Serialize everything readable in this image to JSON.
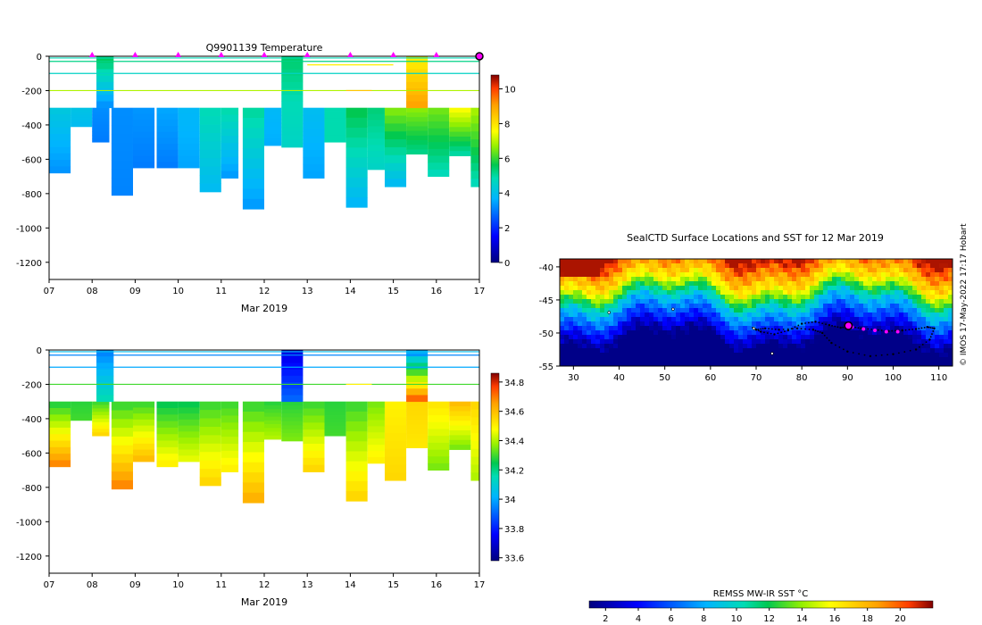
{
  "chart_data": [
    {
      "id": "temp",
      "type": "heatmap",
      "title": "Q9901139  Temperature",
      "xlabel": "Mar 2019",
      "x_ticks": [
        "07",
        "08",
        "09",
        "10",
        "11",
        "12",
        "13",
        "14",
        "15",
        "16",
        "17"
      ],
      "xlim": [
        7,
        17
      ],
      "ylim": [
        -1300,
        0
      ],
      "y_ticks": [
        0,
        -200,
        -400,
        -600,
        -800,
        -1000,
        -1200
      ],
      "colorbar": {
        "min": 0,
        "max": 10.8,
        "ticks": [
          0,
          2,
          4,
          6,
          8,
          10
        ]
      },
      "surface_markers_day": [
        8,
        9,
        10,
        11,
        12,
        13,
        14,
        15,
        16
      ],
      "current_marker_day": 17,
      "profiles": [
        {
          "day": 7.0,
          "width": 0.5,
          "depth": 680,
          "surface": 4.6,
          "top": 4.2,
          "bottom": 3.3
        },
        {
          "day": 7.5,
          "width": 0.5,
          "depth": 410,
          "surface": 4.8,
          "top": 4.1,
          "bottom": 3.9
        },
        {
          "day": 8.0,
          "width": 0.4,
          "depth": 500,
          "surface": 5.3,
          "top": 3.2,
          "bottom": 3.0
        },
        {
          "day": 8.45,
          "width": 0.5,
          "depth": 810,
          "surface": 4.4,
          "top": 3.2,
          "bottom": 3.1
        },
        {
          "day": 8.95,
          "width": 0.5,
          "depth": 650,
          "surface": 4.4,
          "top": 3.3,
          "bottom": 3.0
        },
        {
          "day": 9.5,
          "width": 0.5,
          "depth": 650,
          "surface": 4.4,
          "top": 3.5,
          "bottom": 3.0
        },
        {
          "day": 10.0,
          "width": 0.5,
          "depth": 650,
          "surface": 4.5,
          "top": 3.8,
          "bottom": 3.5
        },
        {
          "day": 10.5,
          "width": 0.5,
          "depth": 790,
          "surface": 4.5,
          "top": 4.8,
          "bottom": 3.9
        },
        {
          "day": 11.0,
          "width": 0.4,
          "depth": 710,
          "surface": 4.6,
          "top": 4.9,
          "bottom": 3.4
        },
        {
          "day": 11.5,
          "width": 0.5,
          "depth": 890,
          "surface": 4.7,
          "top": 5.0,
          "bottom": 3.4
        },
        {
          "day": 12.0,
          "width": 0.4,
          "depth": 520,
          "surface": 4.5,
          "top": 3.8,
          "bottom": 3.6
        },
        {
          "day": 12.4,
          "width": 0.5,
          "depth": 530,
          "surface": 5.4,
          "top": 4.8,
          "bottom": 4.6
        },
        {
          "day": 12.9,
          "width": 0.5,
          "depth": 710,
          "surface": 4.6,
          "top": 3.9,
          "bottom": 3.5
        },
        {
          "day": 13.4,
          "width": 0.5,
          "depth": 500,
          "surface": 4.8,
          "top": 4.9,
          "bottom": 4.9
        },
        {
          "day": 13.9,
          "width": 0.5,
          "depth": 880,
          "surface": 5.4,
          "top": 5.6,
          "bottom": 3.8
        },
        {
          "day": 14.4,
          "width": 0.4,
          "depth": 660,
          "surface": 5.6,
          "top": 5.3,
          "bottom": 4.6
        },
        {
          "day": 14.8,
          "width": 0.5,
          "depth": 760,
          "surface": 6.4,
          "top": 6.5,
          "bottom": 3.9
        },
        {
          "day": 15.3,
          "width": 0.5,
          "depth": 570,
          "surface": 6.6,
          "top": 6.6,
          "bottom": 5.2
        },
        {
          "day": 15.8,
          "width": 0.5,
          "depth": 700,
          "surface": 7.8,
          "top": 6.4,
          "bottom": 4.8
        },
        {
          "day": 16.3,
          "width": 0.5,
          "depth": 580,
          "surface": 6.0,
          "top": 7.5,
          "bottom": 5.0
        },
        {
          "day": 16.8,
          "width": 0.2,
          "depth": 760,
          "surface": 7.0,
          "top": 6.8,
          "bottom": 4.8
        }
      ],
      "surface_columns": [
        {
          "day": 8.1,
          "width": 0.4,
          "top_depth": 0,
          "bottom_depth": 300,
          "top": 5.5,
          "bottom": 3.3
        },
        {
          "day": 12.4,
          "width": 0.5,
          "top_depth": 0,
          "bottom_depth": 300,
          "top": 5.4,
          "bottom": 4.8
        },
        {
          "day": 15.3,
          "width": 0.5,
          "top_depth": 0,
          "bottom_depth": 300,
          "top": 7.8,
          "bottom": 9.0
        }
      ],
      "surface_lines": [
        {
          "from": 7.0,
          "to": 17.0,
          "depth": 10,
          "value": 4.8
        },
        {
          "from": 7.0,
          "to": 17.0,
          "depth": 30,
          "value": 5.2
        },
        {
          "from": 7.0,
          "to": 17.0,
          "depth": 100,
          "value": 4.6
        },
        {
          "from": 7.0,
          "to": 17.0,
          "depth": 200,
          "value": 6.9
        },
        {
          "from": 13.0,
          "to": 15.0,
          "depth": 50,
          "value": 7.8
        },
        {
          "from": 13.9,
          "to": 14.5,
          "depth": 200,
          "value": 8.5
        }
      ]
    },
    {
      "id": "salt",
      "type": "heatmap",
      "title": "",
      "xlabel": "Mar 2019",
      "x_ticks": [
        "07",
        "08",
        "09",
        "10",
        "11",
        "12",
        "13",
        "14",
        "15",
        "16",
        "17"
      ],
      "xlim": [
        7,
        17
      ],
      "ylim": [
        -1300,
        0
      ],
      "y_ticks": [
        0,
        -200,
        -400,
        -600,
        -800,
        -1000,
        -1200
      ],
      "colorbar": {
        "min": 33.58,
        "max": 34.86,
        "ticks": [
          33.6,
          33.8,
          34,
          34.2,
          34.4,
          34.6,
          34.8
        ]
      },
      "profiles": [
        {
          "day": 7.0,
          "width": 0.5,
          "depth": 680,
          "surface": 34.24,
          "top": 34.28,
          "bottom": 34.68
        },
        {
          "day": 7.5,
          "width": 0.5,
          "depth": 410,
          "surface": 34.2,
          "top": 34.28,
          "bottom": 34.3
        },
        {
          "day": 8.0,
          "width": 0.4,
          "depth": 500,
          "surface": 34.18,
          "top": 34.3,
          "bottom": 34.55
        },
        {
          "day": 8.45,
          "width": 0.5,
          "depth": 810,
          "surface": 34.2,
          "top": 34.3,
          "bottom": 34.68
        },
        {
          "day": 8.95,
          "width": 0.5,
          "depth": 650,
          "surface": 34.2,
          "top": 34.3,
          "bottom": 34.6
        },
        {
          "day": 9.5,
          "width": 0.5,
          "depth": 680,
          "surface": 34.2,
          "top": 34.25,
          "bottom": 34.5
        },
        {
          "day": 10.0,
          "width": 0.5,
          "depth": 650,
          "surface": 34.2,
          "top": 34.25,
          "bottom": 34.45
        },
        {
          "day": 10.5,
          "width": 0.5,
          "depth": 790,
          "surface": 34.2,
          "top": 34.3,
          "bottom": 34.55
        },
        {
          "day": 11.0,
          "width": 0.4,
          "depth": 710,
          "surface": 34.2,
          "top": 34.3,
          "bottom": 34.5
        },
        {
          "day": 11.5,
          "width": 0.5,
          "depth": 890,
          "surface": 34.2,
          "top": 34.3,
          "bottom": 34.62
        },
        {
          "day": 12.0,
          "width": 0.4,
          "depth": 520,
          "surface": 34.2,
          "top": 34.28,
          "bottom": 34.4
        },
        {
          "day": 12.4,
          "width": 0.5,
          "depth": 530,
          "surface": 33.9,
          "top": 34.28,
          "bottom": 34.35
        },
        {
          "day": 12.9,
          "width": 0.5,
          "depth": 710,
          "surface": 34.2,
          "top": 34.3,
          "bottom": 34.55
        },
        {
          "day": 13.4,
          "width": 0.5,
          "depth": 500,
          "surface": 34.25,
          "top": 34.28,
          "bottom": 34.3
        },
        {
          "day": 13.9,
          "width": 0.5,
          "depth": 880,
          "surface": 34.25,
          "top": 34.3,
          "bottom": 34.55
        },
        {
          "day": 14.4,
          "width": 0.4,
          "depth": 660,
          "surface": 34.28,
          "top": 34.35,
          "bottom": 34.5
        },
        {
          "day": 14.8,
          "width": 0.5,
          "depth": 760,
          "surface": 34.3,
          "top": 34.5,
          "bottom": 34.55
        },
        {
          "day": 15.3,
          "width": 0.5,
          "depth": 570,
          "surface": 34.35,
          "top": 34.55,
          "bottom": 34.52
        },
        {
          "day": 15.8,
          "width": 0.5,
          "depth": 700,
          "surface": 34.3,
          "top": 34.52,
          "bottom": 34.35
        },
        {
          "day": 16.3,
          "width": 0.5,
          "depth": 580,
          "surface": 34.3,
          "top": 34.6,
          "bottom": 34.35
        },
        {
          "day": 16.8,
          "width": 0.2,
          "depth": 760,
          "surface": 34.45,
          "top": 34.55,
          "bottom": 34.4
        }
      ],
      "surface_columns": [
        {
          "day": 8.1,
          "width": 0.4,
          "top_depth": 0,
          "bottom_depth": 300,
          "top": 33.95,
          "bottom": 34.15
        },
        {
          "day": 12.4,
          "width": 0.5,
          "top_depth": 0,
          "bottom_depth": 300,
          "top": 33.72,
          "bottom": 33.9
        },
        {
          "day": 15.3,
          "width": 0.5,
          "top_depth": 0,
          "bottom_depth": 300,
          "top": 34.0,
          "bottom": 34.72
        }
      ],
      "surface_lines": [
        {
          "from": 7.0,
          "to": 17.0,
          "depth": 10,
          "value": 34.05
        },
        {
          "from": 7.0,
          "to": 17.0,
          "depth": 30,
          "value": 33.95
        },
        {
          "from": 7.0,
          "to": 17.0,
          "depth": 100,
          "value": 34.0
        },
        {
          "from": 7.0,
          "to": 17.0,
          "depth": 200,
          "value": 34.3
        },
        {
          "from": 13.9,
          "to": 14.5,
          "depth": 200,
          "value": 34.5
        }
      ]
    },
    {
      "id": "map",
      "type": "heatmap",
      "title": "SealCTD Surface Locations and SST for 12 Mar 2019",
      "xlim": [
        27,
        113
      ],
      "ylim": [
        -55,
        -38.8
      ],
      "x_ticks": [
        30,
        40,
        50,
        60,
        70,
        80,
        90,
        100,
        110
      ],
      "y_ticks": [
        -40,
        -45,
        -50,
        -55
      ],
      "colorbar": {
        "label": "REMSS MW-IR SST °C",
        "min": 1,
        "max": 22,
        "ticks": [
          2,
          4,
          6,
          8,
          10,
          12,
          14,
          16,
          18,
          20
        ]
      },
      "track": [
        [
          69.3,
          -49.2
        ],
        [
          71.0,
          -49.8
        ],
        [
          74.0,
          -50.2
        ],
        [
          77.0,
          -49.6
        ],
        [
          80.0,
          -48.6
        ],
        [
          83.0,
          -48.3
        ],
        [
          86.0,
          -48.8
        ],
        [
          88.5,
          -49.2
        ],
        [
          90.5,
          -49.0
        ],
        [
          93.0,
          -49.3
        ],
        [
          96.0,
          -49.5
        ],
        [
          99.0,
          -49.7
        ],
        [
          102.0,
          -49.6
        ],
        [
          105.0,
          -49.4
        ],
        [
          107.5,
          -49.1
        ],
        [
          109.0,
          -49.3
        ],
        [
          108.0,
          -51.0
        ],
        [
          105.0,
          -52.5
        ],
        [
          100.0,
          -53.2
        ],
        [
          95.0,
          -53.5
        ],
        [
          90.0,
          -52.8
        ],
        [
          86.5,
          -51.5
        ],
        [
          84.5,
          -50.0
        ],
        [
          82.5,
          -49.5
        ],
        [
          79.0,
          -49.3
        ],
        [
          75.0,
          -49.5
        ],
        [
          72.0,
          -49.3
        ],
        [
          70.0,
          -49.5
        ]
      ],
      "highlight_track": [
        [
          91.0,
          -49.1
        ],
        [
          93.5,
          -49.4
        ],
        [
          96.0,
          -49.6
        ],
        [
          98.5,
          -49.8
        ],
        [
          101.0,
          -49.8
        ]
      ],
      "current_position": [
        90.2,
        -48.9
      ],
      "islands": [
        [
          37.8,
          -46.9
        ],
        [
          51.8,
          -46.4
        ],
        [
          69.5,
          -49.3
        ],
        [
          73.5,
          -53.1
        ]
      ]
    }
  ],
  "credit": "© IMOS 17-May-2022 17:17 Hobart"
}
